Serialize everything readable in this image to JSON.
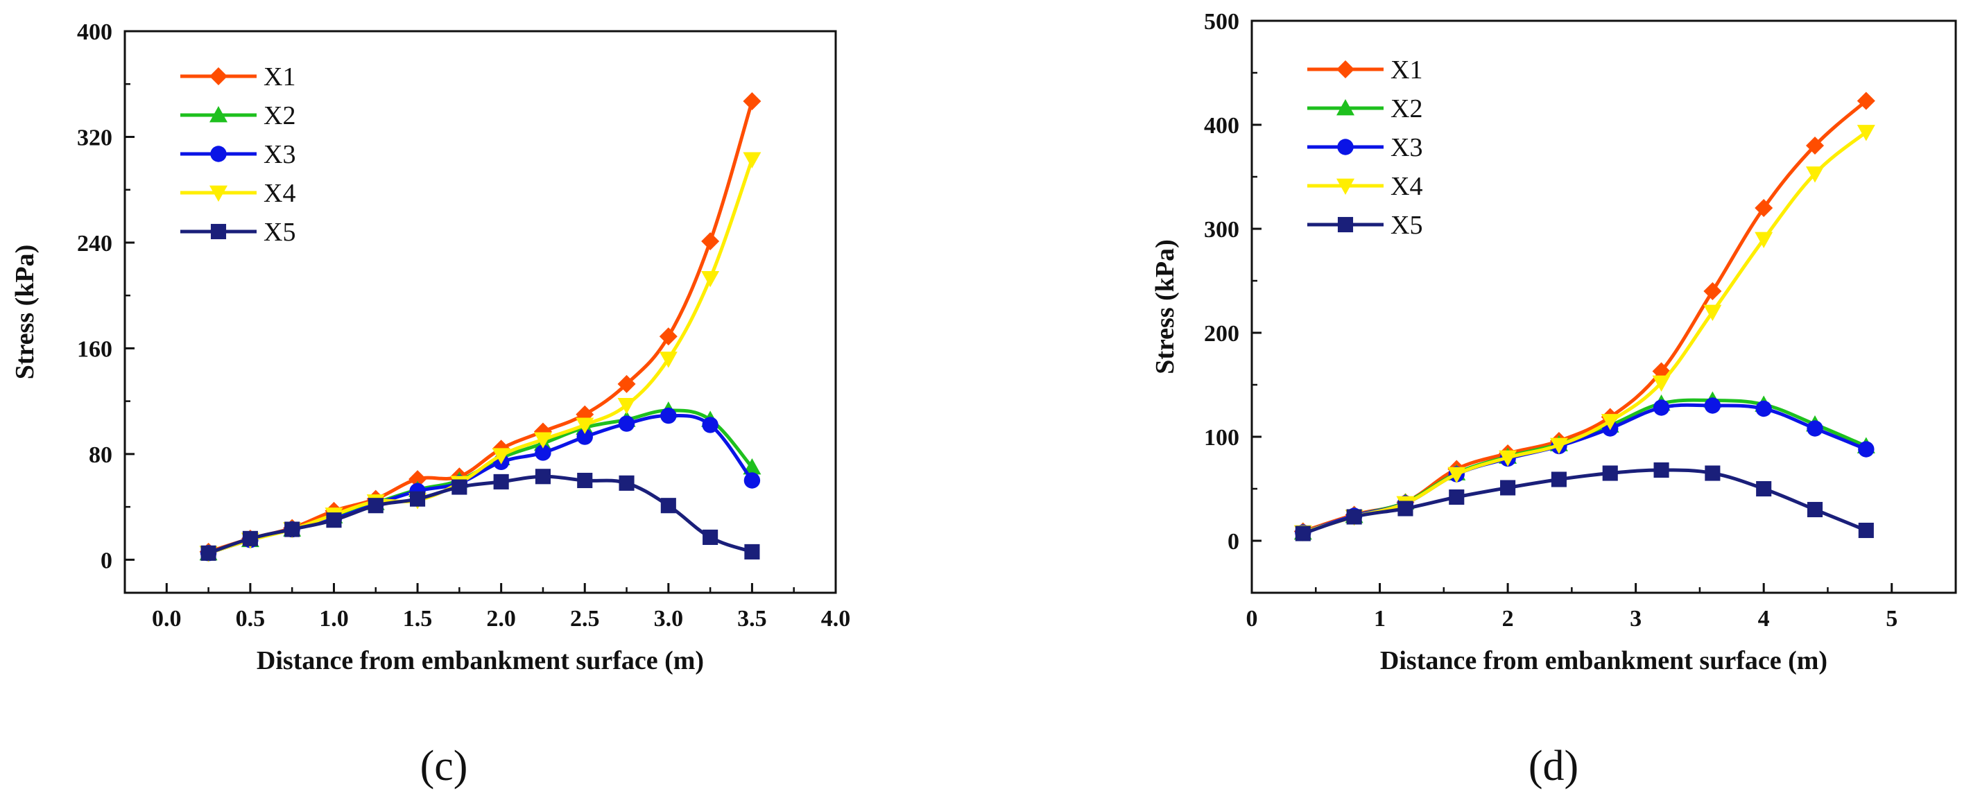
{
  "chart_data": [
    {
      "type": "line",
      "panel_label": "(c)",
      "xlabel": "Distance from embankment surface (m)",
      "ylabel": "Stress (kPa)",
      "xlim": [
        -0.25,
        4.0
      ],
      "ylim": [
        -25,
        400
      ],
      "xticks": [
        "0.0",
        "0.5",
        "1.0",
        "1.5",
        "2.0",
        "2.5",
        "3.0",
        "3.5",
        "4.0"
      ],
      "yticks": [
        "0",
        "80",
        "160",
        "240",
        "320",
        "400"
      ],
      "legend_position": "top-left",
      "x": [
        0.25,
        0.5,
        0.75,
        1.0,
        1.25,
        1.5,
        1.75,
        2.0,
        2.25,
        2.5,
        2.75,
        3.0,
        3.25,
        3.5
      ],
      "series": [
        {
          "name": "X1",
          "color": "#ff4d00",
          "marker": "diamond",
          "values": [
            6,
            16,
            24,
            37,
            46,
            61,
            63,
            84,
            97,
            110,
            133,
            169,
            241,
            347
          ]
        },
        {
          "name": "X2",
          "color": "#1ec01e",
          "marker": "triangle-up",
          "values": [
            5,
            15,
            23,
            33,
            43,
            53,
            60,
            77,
            88,
            100,
            106,
            113,
            106,
            70
          ]
        },
        {
          "name": "X3",
          "color": "#0a14e6",
          "marker": "circle",
          "values": [
            5,
            15,
            23,
            31,
            42,
            52,
            58,
            74,
            81,
            93,
            103,
            109,
            102,
            60
          ]
        },
        {
          "name": "X4",
          "color": "#ffee00",
          "marker": "triangle-down",
          "values": [
            5,
            15,
            23,
            34,
            44,
            45,
            58,
            79,
            91,
            102,
            117,
            152,
            213,
            303
          ]
        },
        {
          "name": "X5",
          "color": "#1a1f7a",
          "marker": "square",
          "values": [
            5,
            16,
            23,
            30,
            41,
            46,
            55,
            59,
            63,
            60,
            58,
            41,
            17,
            6
          ]
        }
      ]
    },
    {
      "type": "line",
      "panel_label": "(d)",
      "xlabel": "Distance from embankment surface (m)",
      "ylabel": "Stress (kPa)",
      "xlim": [
        0,
        5.5
      ],
      "ylim": [
        -50,
        500
      ],
      "xticks": [
        "0",
        "1",
        "2",
        "3",
        "4",
        "5"
      ],
      "yticks": [
        "0",
        "100",
        "200",
        "300",
        "400",
        "500"
      ],
      "legend_position": "top-left",
      "x": [
        0.4,
        0.8,
        1.2,
        1.6,
        2.0,
        2.4,
        2.8,
        3.2,
        3.6,
        4.0,
        4.4,
        4.8
      ],
      "series": [
        {
          "name": "X1",
          "color": "#ff4d00",
          "marker": "diamond",
          "values": [
            9,
            25,
            37,
            69,
            84,
            96,
            119,
            163,
            240,
            320,
            380,
            423
          ]
        },
        {
          "name": "X2",
          "color": "#1ec01e",
          "marker": "triangle-up",
          "values": [
            8,
            24,
            37,
            65,
            81,
            93,
            111,
            132,
            135,
            131,
            112,
            91
          ]
        },
        {
          "name": "X3",
          "color": "#0a14e6",
          "marker": "circle",
          "values": [
            8,
            24,
            36,
            64,
            79,
            91,
            108,
            128,
            130,
            127,
            108,
            88
          ]
        },
        {
          "name": "X4",
          "color": "#ffee00",
          "marker": "triangle-down",
          "values": [
            8,
            23,
            36,
            64,
            80,
            92,
            115,
            152,
            220,
            290,
            353,
            393
          ]
        },
        {
          "name": "X5",
          "color": "#1a1f7a",
          "marker": "square",
          "values": [
            7,
            23,
            31,
            42,
            51,
            59,
            65,
            68,
            65,
            50,
            30,
            10
          ]
        }
      ]
    }
  ]
}
